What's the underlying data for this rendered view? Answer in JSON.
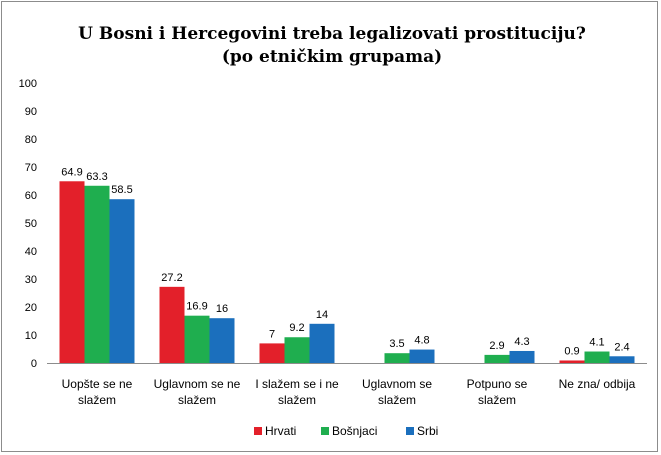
{
  "chart_data": {
    "type": "bar",
    "title": "U Bosni i Hercegovini treba legalizovati prostituciju?",
    "subtitle": "(po etničkim grupama)",
    "categories": [
      [
        "Uopšte se ne",
        "slažem"
      ],
      [
        "Uglavnom se ne",
        "slažem"
      ],
      [
        "I slažem se i ne",
        "slažem"
      ],
      [
        "Uglavnom se",
        "slažem"
      ],
      [
        "Potpuno se",
        "slažem"
      ],
      [
        "Ne zna/ odbija"
      ]
    ],
    "series": [
      {
        "name": "Hrvati",
        "color": "#e3202a",
        "values": [
          64.9,
          27.2,
          7,
          0,
          0,
          0.9
        ],
        "labels": [
          "64.9",
          "27.2",
          "7",
          "",
          "",
          "0.9"
        ]
      },
      {
        "name": "Bošnjaci",
        "color": "#1fae4f",
        "values": [
          63.3,
          16.9,
          9.2,
          3.5,
          2.9,
          4.1
        ],
        "labels": [
          "63.3",
          "16.9",
          "9.2",
          "3.5",
          "2.9",
          "4.1"
        ]
      },
      {
        "name": "Srbi",
        "color": "#1b6fbd",
        "values": [
          58.5,
          16,
          14,
          4.8,
          4.3,
          2.4
        ],
        "labels": [
          "58.5",
          "16",
          "14",
          "4.8",
          "4.3",
          "2.4"
        ]
      }
    ],
    "xlabel": "",
    "ylabel": "",
    "ylim": [
      0,
      100
    ],
    "yticks": [
      0,
      10,
      20,
      30,
      40,
      50,
      60,
      70,
      80,
      90,
      100
    ],
    "grid": false,
    "legend": "bottom"
  }
}
